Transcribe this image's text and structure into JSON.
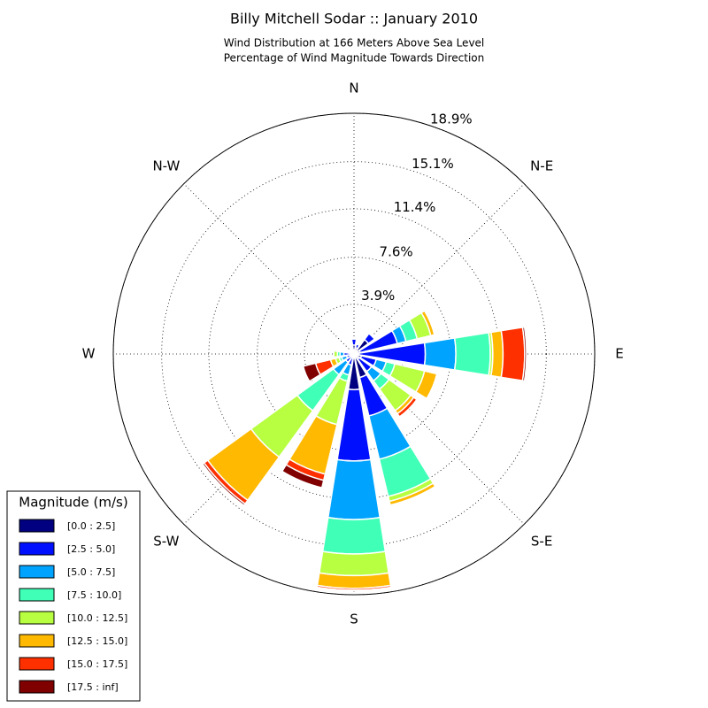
{
  "chart_data": {
    "type": "windrose",
    "title": "Billy Mitchell Sodar :: January 2010",
    "subtitle": [
      "Wind Distribution at 166 Meters Above Sea Level",
      "Percentage of Wind Magnitude Towards Direction"
    ],
    "legend_title": "Magnitude (m/s)",
    "legend_position": "lower left",
    "categories": [
      "N",
      null,
      "N-E",
      null,
      "E",
      null,
      "S-E",
      null,
      "S",
      null,
      "S-W",
      null,
      "W",
      null,
      "N-W",
      null
    ],
    "ylim": [
      0,
      18.9
    ],
    "yticks": [
      {
        "value": 3.9,
        "label": "3.9%"
      },
      {
        "value": 7.6,
        "label": "7.6%"
      },
      {
        "value": 11.4,
        "label": "11.4%"
      },
      {
        "value": 15.1,
        "label": "15.1%"
      },
      {
        "value": 18.9,
        "label": "18.9%"
      }
    ],
    "grid": true,
    "series": [
      {
        "name": "[0.0 : 2.5]",
        "color": "#000080",
        "values": [
          0.7,
          0.5,
          1.4,
          0.5,
          0.4,
          0.6,
          0.5,
          1.9,
          2.8,
          0.3,
          0.2,
          0.2,
          0.3,
          0.2,
          0.2,
          0.1
        ]
      },
      {
        "name": "[2.5 : 5.0]",
        "color": "#0010ff",
        "values": [
          0.5,
          0.3,
          0.6,
          3.0,
          5.2,
          1.2,
          1.2,
          3.1,
          5.6,
          0.6,
          0.6,
          0.4,
          0.5,
          0.2,
          0.1,
          0.1
        ]
      },
      {
        "name": "[5.0 : 7.5]",
        "color": "#00a4ff",
        "values": [
          0,
          0,
          0,
          0.7,
          2.4,
          0.8,
          0.9,
          3.5,
          4.6,
          0.8,
          1.2,
          0.4,
          0.3,
          0.1,
          0,
          0
        ]
      },
      {
        "name": "[7.5 : 10.0]",
        "color": "#40ffb7",
        "values": [
          0,
          0,
          0,
          0.9,
          2.7,
          0.7,
          0.8,
          3.0,
          2.7,
          0.5,
          3.5,
          0.2,
          0.2,
          0,
          0,
          0
        ]
      },
      {
        "name": "[10.0 : 12.5]",
        "color": "#b7ff40",
        "values": [
          0,
          0,
          0,
          1.1,
          0.2,
          2.4,
          2.1,
          0.4,
          1.7,
          3.5,
          4.5,
          0.3,
          0.3,
          0,
          0,
          0
        ]
      },
      {
        "name": "[12.5 : 15.0]",
        "color": "#ffb900",
        "values": [
          0,
          0,
          0,
          0.3,
          0.8,
          1.0,
          0.3,
          0.3,
          1.0,
          4.0,
          4.2,
          0.4,
          0,
          0,
          0,
          0
        ]
      },
      {
        "name": "[15.0 : 17.5]",
        "color": "#ff3000",
        "values": [
          0,
          0,
          0,
          0,
          1.7,
          0,
          0.3,
          0.1,
          0.15,
          0.5,
          0.35,
          1.2,
          0,
          0,
          0,
          0
        ]
      },
      {
        "name": "[17.5 : inf]",
        "color": "#800000",
        "values": [
          0,
          0,
          0,
          0,
          0.15,
          0,
          0,
          0,
          0.05,
          0.6,
          0.15,
          1.0,
          0,
          0,
          0,
          0
        ]
      }
    ]
  }
}
